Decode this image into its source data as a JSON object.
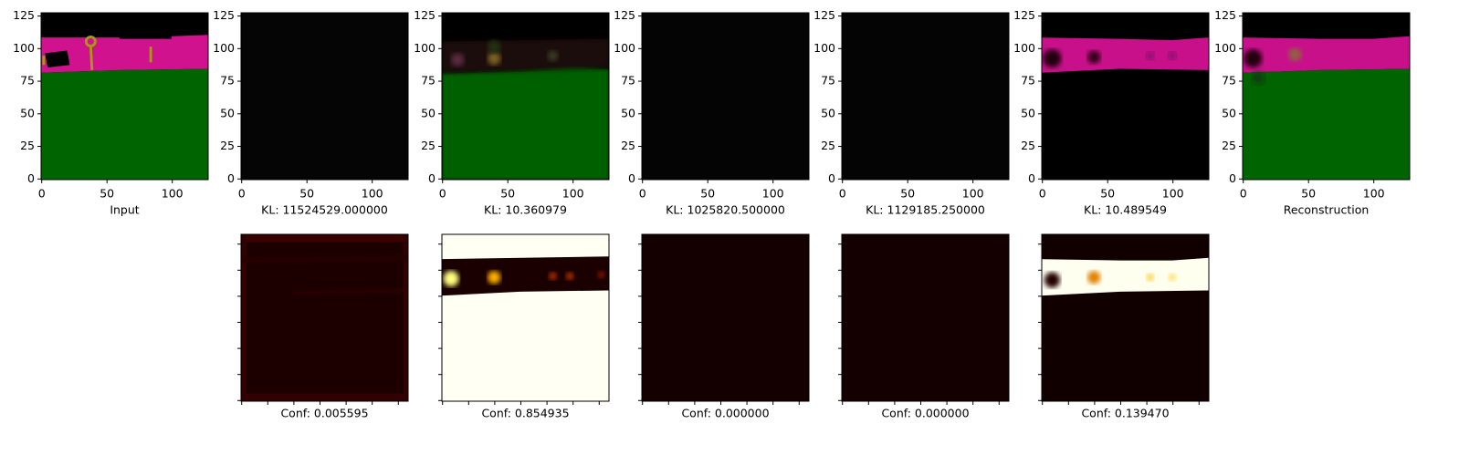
{
  "chart_data": [
    {
      "type": "image",
      "xlabel": "Input",
      "xlim": [
        -0.5,
        127.5
      ],
      "ylim": [
        127.5,
        -0.5
      ],
      "xticks": [
        0,
        50,
        100
      ],
      "yticks": [
        0,
        25,
        50,
        75,
        100,
        125
      ],
      "tick_labels": true
    },
    {
      "type": "image",
      "xlabel": "KL: 11524529.000000",
      "xlim": [
        -0.5,
        127.5
      ],
      "ylim": [
        127.5,
        -0.5
      ],
      "xticks": [
        0,
        50,
        100
      ],
      "yticks": [
        0,
        25,
        50,
        75,
        100,
        125
      ],
      "tick_labels": true
    },
    {
      "type": "image",
      "xlabel": "KL: 10.360979",
      "xlim": [
        -0.5,
        127.5
      ],
      "ylim": [
        127.5,
        -0.5
      ],
      "xticks": [
        0,
        50,
        100
      ],
      "yticks": [
        0,
        25,
        50,
        75,
        100,
        125
      ],
      "tick_labels": true
    },
    {
      "type": "image",
      "xlabel": "KL: 1025820.500000",
      "xlim": [
        -0.5,
        127.5
      ],
      "ylim": [
        127.5,
        -0.5
      ],
      "xticks": [
        0,
        50,
        100
      ],
      "yticks": [
        0,
        25,
        50,
        75,
        100,
        125
      ],
      "tick_labels": true
    },
    {
      "type": "image",
      "xlabel": "KL: 1129185.250000",
      "xlim": [
        -0.5,
        127.5
      ],
      "ylim": [
        127.5,
        -0.5
      ],
      "xticks": [
        0,
        50,
        100
      ],
      "yticks": [
        0,
        25,
        50,
        75,
        100,
        125
      ],
      "tick_labels": true
    },
    {
      "type": "image",
      "xlabel": "KL: 10.489549",
      "xlim": [
        -0.5,
        127.5
      ],
      "ylim": [
        127.5,
        -0.5
      ],
      "xticks": [
        0,
        50,
        100
      ],
      "yticks": [
        0,
        25,
        50,
        75,
        100,
        125
      ],
      "tick_labels": true
    },
    {
      "type": "image",
      "xlabel": "Reconstruction",
      "xlim": [
        -0.5,
        127.5
      ],
      "ylim": [
        127.5,
        -0.5
      ],
      "xticks": [
        0,
        50,
        100
      ],
      "yticks": [
        0,
        25,
        50,
        75,
        100,
        125
      ],
      "tick_labels": true
    },
    {
      "type": "image",
      "xlabel": "Conf: 0.005595",
      "xlim": [
        -0.5,
        127.5
      ],
      "ylim": [
        127.5,
        -0.5
      ],
      "xticks": [
        0,
        20,
        40,
        60,
        80,
        100,
        120
      ],
      "yticks": [
        0,
        20,
        40,
        60,
        80,
        100,
        120
      ],
      "tick_labels": false
    },
    {
      "type": "image",
      "xlabel": "Conf: 0.854935",
      "xlim": [
        -0.5,
        127.5
      ],
      "ylim": [
        127.5,
        -0.5
      ],
      "xticks": [
        0,
        20,
        40,
        60,
        80,
        100,
        120
      ],
      "yticks": [
        0,
        20,
        40,
        60,
        80,
        100,
        120
      ],
      "tick_labels": false
    },
    {
      "type": "image",
      "xlabel": "Conf: 0.000000",
      "xlim": [
        -0.5,
        127.5
      ],
      "ylim": [
        127.5,
        -0.5
      ],
      "xticks": [
        0,
        20,
        40,
        60,
        80,
        100,
        120
      ],
      "yticks": [
        0,
        20,
        40,
        60,
        80,
        100,
        120
      ],
      "tick_labels": false
    },
    {
      "type": "image",
      "xlabel": "Conf: 0.000000",
      "xlim": [
        -0.5,
        127.5
      ],
      "ylim": [
        127.5,
        -0.5
      ],
      "xticks": [
        0,
        20,
        40,
        60,
        80,
        100,
        120
      ],
      "yticks": [
        0,
        20,
        40,
        60,
        80,
        100,
        120
      ],
      "tick_labels": false
    },
    {
      "type": "image",
      "xlabel": "Conf: 0.139470",
      "xlim": [
        -0.5,
        127.5
      ],
      "ylim": [
        127.5,
        -0.5
      ],
      "xticks": [
        0,
        20,
        40,
        60,
        80,
        100,
        120
      ],
      "yticks": [
        0,
        20,
        40,
        60,
        80,
        100,
        120
      ],
      "tick_labels": false
    }
  ]
}
